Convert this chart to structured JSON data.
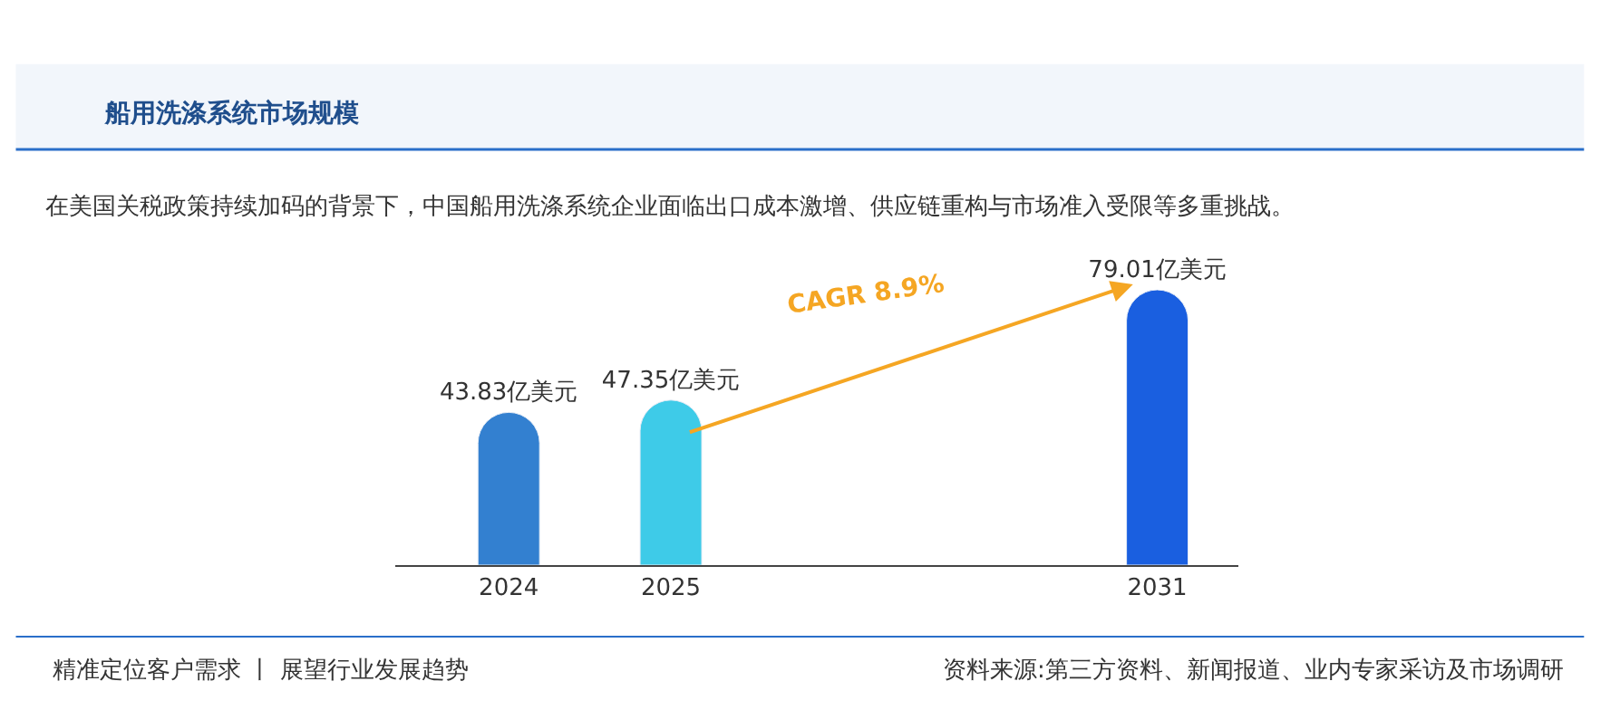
{
  "chart_data": {
    "type": "bar",
    "title": "船用洗涤系统市场规模",
    "subtitle": "在美国关税政策持续加码的背景下，中国船用洗涤系统企业面临出口成本激增、供应链重构与市场准入受限等多重挑战。",
    "categories": [
      "2024",
      "2025",
      null,
      null,
      "2031"
    ],
    "values": [
      43.83,
      47.35,
      null,
      null,
      79.01
    ],
    "value_labels": [
      "43.83亿美元",
      "47.35亿美元",
      null,
      null,
      "79.01亿美元"
    ],
    "colors": [
      "#3380d0",
      "#3ecbe8",
      "#1a5fe0",
      "#1a5fe0",
      "#1a5fe0"
    ],
    "annotations": [
      "CAGR 8.9%",
      "精准定位客户需求 丨 展望行业发展趋势",
      "资料来源:第三方资料、新闻报道、业内专家采访及市场调研"
    ],
    "legend": false
  }
}
